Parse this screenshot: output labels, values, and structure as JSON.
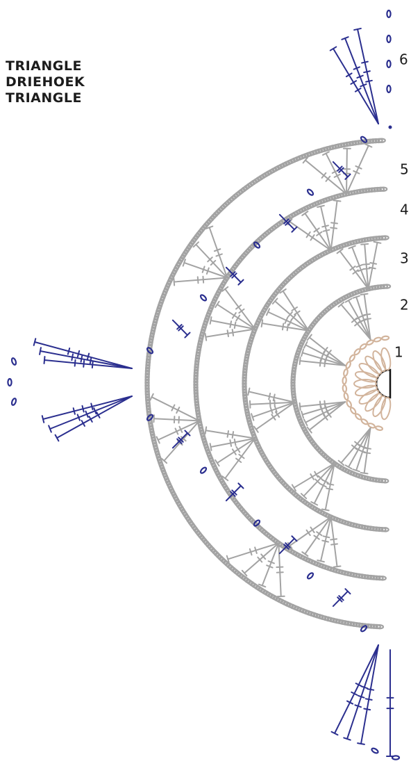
{
  "title": {
    "lines": [
      "TRIANGLE",
      "DRIEHOEK",
      "TRIANGLE"
    ]
  },
  "round_labels": [
    "1",
    "2",
    "3",
    "4",
    "5",
    "6"
  ]
}
